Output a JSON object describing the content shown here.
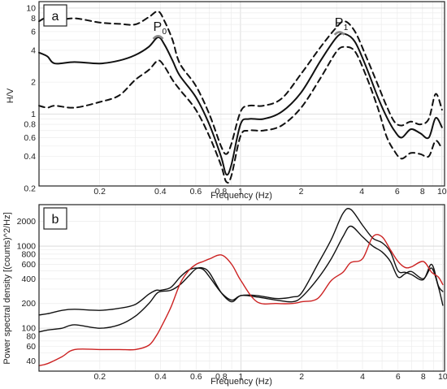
{
  "chart_data": [
    {
      "type": "line",
      "panel_label": "a",
      "xlabel": "Frequency (Hz)",
      "ylabel": "H/V",
      "xscale": "log",
      "yscale": "log",
      "xlim": [
        0.1,
        10.3
      ],
      "ylim": [
        0.21,
        11.5
      ],
      "xticks": [
        "0.2",
        "0.4",
        "0.6",
        "0.8",
        "1",
        "2",
        "4",
        "6",
        "8",
        "10"
      ],
      "yticks": [
        "0.2",
        "0.4",
        "0.6",
        "0.8",
        "1",
        "2",
        "4",
        "6",
        "8",
        "10"
      ],
      "grid": true,
      "annotations": [
        {
          "label": "P",
          "sub": "0",
          "x": 0.39,
          "y": 5.5
        },
        {
          "label": "P",
          "sub": "1",
          "x": 3.1,
          "y": 6.0
        }
      ],
      "x": [
        0.1,
        0.11,
        0.12,
        0.15,
        0.2,
        0.25,
        0.3,
        0.35,
        0.39,
        0.42,
        0.46,
        0.5,
        0.6,
        0.7,
        0.8,
        0.85,
        0.9,
        1.0,
        1.1,
        1.3,
        1.6,
        2.0,
        2.5,
        3.0,
        3.3,
        3.7,
        4.2,
        4.8,
        5.3,
        5.8,
        6.3,
        7.0,
        7.8,
        8.6,
        9.3,
        10.0
      ],
      "series": [
        {
          "name": "",
          "style": "dashed",
          "color": "#111111",
          "values": [
            7.5,
            8.2,
            7.6,
            8.0,
            7.3,
            7.1,
            7.0,
            8.2,
            9.3,
            7.5,
            5.0,
            3.0,
            1.85,
            1.0,
            0.5,
            0.42,
            0.52,
            1.05,
            1.2,
            1.2,
            1.4,
            2.4,
            4.3,
            6.6,
            7.5,
            6.0,
            3.5,
            1.9,
            1.2,
            0.85,
            0.78,
            0.85,
            0.8,
            0.9,
            1.55,
            1.1
          ]
        },
        {
          "name": "",
          "style": "solid",
          "color": "#111111",
          "values": [
            3.8,
            3.5,
            3.0,
            3.1,
            3.0,
            3.2,
            3.6,
            4.3,
            5.3,
            4.5,
            3.2,
            2.3,
            1.45,
            0.8,
            0.4,
            0.27,
            0.33,
            0.8,
            0.9,
            0.9,
            1.05,
            1.6,
            3.2,
            5.3,
            5.7,
            4.8,
            2.8,
            1.45,
            0.95,
            0.7,
            0.6,
            0.72,
            0.66,
            0.6,
            0.92,
            0.75
          ]
        },
        {
          "name": "",
          "style": "dashed",
          "color": "#111111",
          "values": [
            1.2,
            1.15,
            1.2,
            1.15,
            1.3,
            1.5,
            2.1,
            2.6,
            3.2,
            2.8,
            2.1,
            1.7,
            1.1,
            0.62,
            0.33,
            0.23,
            0.26,
            0.62,
            0.7,
            0.7,
            0.78,
            1.15,
            2.2,
            3.9,
            4.3,
            3.9,
            2.3,
            1.15,
            0.62,
            0.45,
            0.38,
            0.43,
            0.42,
            0.4,
            0.56,
            0.47
          ]
        }
      ]
    },
    {
      "type": "line",
      "panel_label": "b",
      "xlabel": "Frequency (Hz)",
      "ylabel": "Power spectral density [(counts)^2/Hz]",
      "xscale": "log",
      "yscale": "log",
      "xlim": [
        0.1,
        10.2
      ],
      "ylim": [
        30,
        3200
      ],
      "xticks": [
        "0.2",
        "0.4",
        "0.6",
        "0.8",
        "1",
        "2",
        "4",
        "6",
        "8",
        "10"
      ],
      "yticks": [
        "40",
        "60",
        "80",
        "100",
        "200",
        "400",
        "600",
        "800",
        "1000",
        "2000"
      ],
      "grid": true,
      "x": [
        0.1,
        0.11,
        0.13,
        0.15,
        0.2,
        0.25,
        0.3,
        0.35,
        0.38,
        0.4,
        0.45,
        0.5,
        0.55,
        0.6,
        0.65,
        0.7,
        0.8,
        0.9,
        1.0,
        1.2,
        1.5,
        1.8,
        2.0,
        2.4,
        2.8,
        3.2,
        3.5,
        4.0,
        4.5,
        5.0,
        5.5,
        6.0,
        6.5,
        7.0,
        8.0,
        8.8,
        9.5,
        10.0
      ],
      "series": [
        {
          "name": "",
          "color": "#111111",
          "values": [
            145,
            150,
            165,
            170,
            165,
            175,
            195,
            260,
            290,
            290,
            315,
            420,
            510,
            540,
            520,
            420,
            270,
            220,
            250,
            250,
            230,
            240,
            270,
            600,
            1200,
            2500,
            2800,
            1800,
            1250,
            1100,
            850,
            500,
            480,
            450,
            390,
            600,
            330,
            280
          ]
        },
        {
          "name": "",
          "color": "#111111",
          "values": [
            90,
            95,
            100,
            110,
            100,
            110,
            140,
            200,
            260,
            280,
            290,
            340,
            430,
            530,
            540,
            470,
            270,
            210,
            250,
            240,
            220,
            210,
            240,
            400,
            700,
            1300,
            1750,
            1300,
            1000,
            850,
            650,
            420,
            460,
            490,
            400,
            540,
            320,
            190
          ]
        },
        {
          "name": "",
          "color": "#cc2222",
          "values": [
            35,
            37,
            45,
            55,
            55,
            55,
            55,
            62,
            80,
            100,
            180,
            350,
            500,
            600,
            650,
            700,
            780,
            600,
            380,
            210,
            200,
            200,
            210,
            230,
            380,
            480,
            630,
            700,
            1300,
            1300,
            900,
            650,
            550,
            560,
            650,
            480,
            420,
            340
          ]
        }
      ]
    }
  ]
}
